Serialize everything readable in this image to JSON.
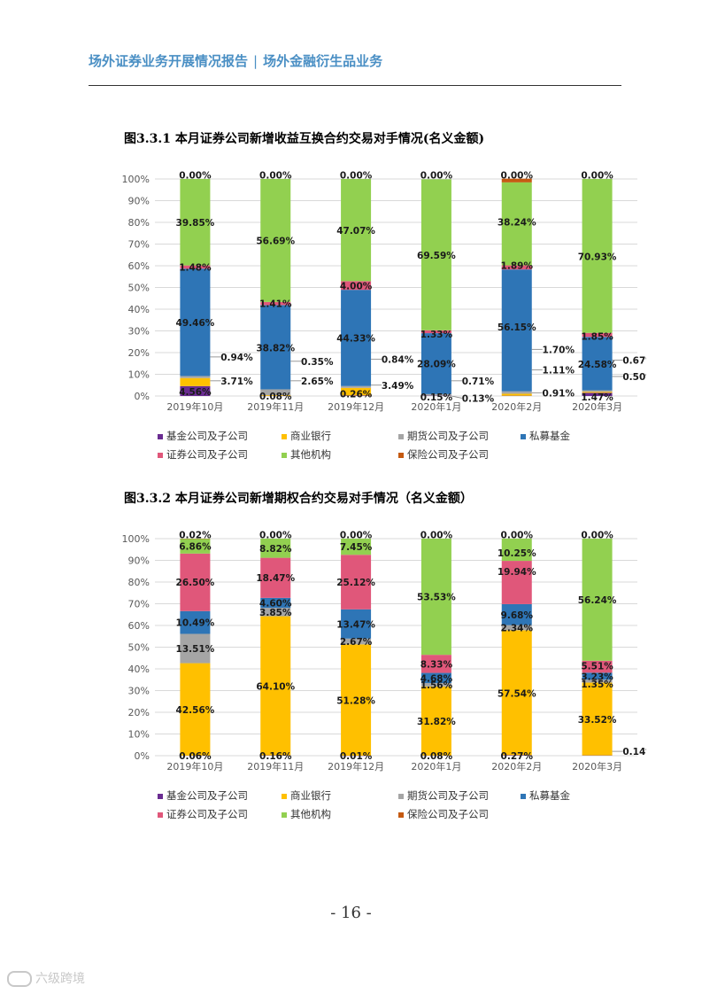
{
  "header": {
    "left": "场外证券业务开展情况报告",
    "separator": "|",
    "right": "场外金融衍生品业务"
  },
  "page_number": "- 16 -",
  "watermark": "六级跨境",
  "legend_labels": [
    "基金公司及子公司",
    "商业银行",
    "期货公司及子公司",
    "私募基金",
    "证券公司及子公司",
    "其他机构",
    "保险公司及子公司"
  ],
  "colors": {
    "基金公司及子公司": "#6a2c91",
    "商业银行": "#ffc000",
    "期货公司及子公司": "#a5a5a5",
    "私募基金": "#2e75b6",
    "证券公司及子公司": "#e0577a",
    "其他机构": "#92d050",
    "保险公司及子公司": "#c55a11"
  },
  "chart_data": [
    {
      "type": "bar",
      "stacked": true,
      "title": "图3.3.1 本月证券公司新增收益互换合约交易对手情况(名义金额)",
      "categories": [
        "2019年10月",
        "2019年11月",
        "2019年12月",
        "2020年1月",
        "2020年2月",
        "2020年3月"
      ],
      "ylim": [
        0,
        100
      ],
      "yticks": [
        "0%",
        "10%",
        "20%",
        "30%",
        "40%",
        "50%",
        "60%",
        "70%",
        "80%",
        "90%",
        "100%"
      ],
      "series": [
        {
          "name": "基金公司及子公司",
          "values": [
            4.56,
            0.08,
            0.26,
            0.15,
            0.13,
            1.47
          ]
        },
        {
          "name": "商业银行",
          "values": [
            3.71,
            0.35,
            3.49,
            0,
            0.91,
            0.5
          ]
        },
        {
          "name": "期货公司及子公司",
          "values": [
            0.94,
            2.65,
            0.84,
            0.71,
            1.11,
            0.67
          ]
        },
        {
          "name": "私募基金",
          "values": [
            49.46,
            38.82,
            44.33,
            28.09,
            56.15,
            24.58
          ]
        },
        {
          "name": "证券公司及子公司",
          "values": [
            1.48,
            1.41,
            4.0,
            1.33,
            1.89,
            1.85
          ]
        },
        {
          "name": "其他机构",
          "values": [
            39.85,
            56.69,
            47.07,
            69.59,
            38.24,
            70.93
          ]
        },
        {
          "name": "保险公司及子公司",
          "values": [
            0,
            0,
            0,
            0,
            1.7,
            0
          ]
        }
      ],
      "data_labels": [
        {
          "text": "4.56%",
          "cat": 0,
          "y": 2
        },
        {
          "text": "3.71%",
          "cat": 0,
          "y": 7,
          "outside": true
        },
        {
          "text": "0.94%",
          "cat": 0,
          "y": 18,
          "outside": true
        },
        {
          "text": "49.46%",
          "cat": 0,
          "y": 33.9
        },
        {
          "text": "1.48%",
          "cat": 0,
          "y": 59.4
        },
        {
          "text": "39.85%",
          "cat": 0,
          "y": 80
        },
        {
          "text": "0.00%",
          "cat": 0,
          "y": 101.8
        },
        {
          "text": "0.08%",
          "cat": 1,
          "y": 0
        },
        {
          "text": "2.65%",
          "cat": 1,
          "y": 7,
          "outside": true
        },
        {
          "text": "0.35%",
          "cat": 1,
          "y": 16,
          "outside": true
        },
        {
          "text": "38.82%",
          "cat": 1,
          "y": 22.3
        },
        {
          "text": "1.41%",
          "cat": 1,
          "y": 42.6
        },
        {
          "text": "56.69%",
          "cat": 1,
          "y": 71.6
        },
        {
          "text": "0.00%",
          "cat": 1,
          "y": 101.8
        },
        {
          "text": "0.26%",
          "cat": 2,
          "y": 1
        },
        {
          "text": "3.49%",
          "cat": 2,
          "y": 5,
          "outside": true
        },
        {
          "text": "0.84%",
          "cat": 2,
          "y": 17,
          "outside": true
        },
        {
          "text": "44.33%",
          "cat": 2,
          "y": 26.8
        },
        {
          "text": "4.00%",
          "cat": 2,
          "y": 50.9
        },
        {
          "text": "47.07%",
          "cat": 2,
          "y": 76.4
        },
        {
          "text": "0.00%",
          "cat": 2,
          "y": 101.8
        },
        {
          "text": "0.15%",
          "cat": 3,
          "y": -0.5
        },
        {
          "text": "0.13%",
          "cat": 3,
          "y": -1,
          "outside": true
        },
        {
          "text": "0.71%",
          "cat": 3,
          "y": 7,
          "outside": true
        },
        {
          "text": "28.09%",
          "cat": 3,
          "y": 14.8
        },
        {
          "text": "1.33%",
          "cat": 3,
          "y": 28.6
        },
        {
          "text": "69.59%",
          "cat": 3,
          "y": 64.8
        },
        {
          "text": "0.00%",
          "cat": 3,
          "y": 101.8
        },
        {
          "text": "0.91%",
          "cat": 4,
          "y": 1.5,
          "outside": true
        },
        {
          "text": "1.11%",
          "cat": 4,
          "y": 12,
          "outside": true
        },
        {
          "text": "1.70%",
          "cat": 4,
          "y": 21.5,
          "outside": true
        },
        {
          "text": "56.15%",
          "cat": 4,
          "y": 31.9
        },
        {
          "text": "1.89%",
          "cat": 4,
          "y": 60.2
        },
        {
          "text": "38.24%",
          "cat": 4,
          "y": 80.3
        },
        {
          "text": "0.00%",
          "cat": 4,
          "y": 101.8
        },
        {
          "text": "1.47%",
          "cat": 5,
          "y": -0.5
        },
        {
          "text": "0.50%",
          "cat": 5,
          "y": 9,
          "outside": true
        },
        {
          "text": "0.67%",
          "cat": 5,
          "y": 16.5,
          "outside": true
        },
        {
          "text": "24.58%",
          "cat": 5,
          "y": 14.6
        },
        {
          "text": "1.85%",
          "cat": 5,
          "y": 27.5
        },
        {
          "text": "70.93%",
          "cat": 5,
          "y": 64.2
        },
        {
          "text": "0.00%",
          "cat": 5,
          "y": 101.8
        }
      ]
    },
    {
      "type": "bar",
      "stacked": true,
      "title": "图3.3.2 本月证券公司新增期权合约交易对手情况（名义金额）",
      "categories": [
        "2019年10月",
        "2019年11月",
        "2019年12月",
        "2020年1月",
        "2020年2月",
        "2020年3月"
      ],
      "ylim": [
        0,
        100
      ],
      "yticks": [
        "0%",
        "10%",
        "20%",
        "30%",
        "40%",
        "50%",
        "60%",
        "70%",
        "80%",
        "90%",
        "100%"
      ],
      "series": [
        {
          "name": "基金公司及子公司",
          "values": [
            0.06,
            0.16,
            0.01,
            0.08,
            0.27,
            0.14
          ]
        },
        {
          "name": "商业银行",
          "values": [
            42.56,
            64.1,
            51.28,
            31.82,
            57.54,
            33.52
          ]
        },
        {
          "name": "期货公司及子公司",
          "values": [
            13.51,
            3.85,
            2.67,
            1.56,
            2.34,
            1.35
          ]
        },
        {
          "name": "私募基金",
          "values": [
            10.49,
            4.6,
            13.47,
            4.68,
            9.68,
            3.23
          ]
        },
        {
          "name": "证券公司及子公司",
          "values": [
            26.5,
            18.47,
            25.12,
            8.33,
            19.94,
            5.51
          ]
        },
        {
          "name": "其他机构",
          "values": [
            6.86,
            8.82,
            7.45,
            53.53,
            10.25,
            56.24
          ]
        },
        {
          "name": "保险公司及子公司",
          "values": [
            0.02,
            0,
            0,
            0,
            0,
            0
          ]
        }
      ],
      "data_labels": [
        {
          "text": "0.06%",
          "cat": 0,
          "y": 0
        },
        {
          "text": "42.56%",
          "cat": 0,
          "y": 21.3
        },
        {
          "text": "13.51%",
          "cat": 0,
          "y": 49.4
        },
        {
          "text": "10.49%",
          "cat": 0,
          "y": 61.4
        },
        {
          "text": "26.50%",
          "cat": 0,
          "y": 79.9
        },
        {
          "text": "6.86%",
          "cat": 0,
          "y": 96.6
        },
        {
          "text": "0.02%",
          "cat": 0,
          "y": 101.8
        },
        {
          "text": "0.16%",
          "cat": 1,
          "y": 0
        },
        {
          "text": "64.10%",
          "cat": 1,
          "y": 32.1
        },
        {
          "text": "3.85%",
          "cat": 1,
          "y": 66.2
        },
        {
          "text": "4.60%",
          "cat": 1,
          "y": 70.5
        },
        {
          "text": "18.47%",
          "cat": 1,
          "y": 82.1
        },
        {
          "text": "8.82%",
          "cat": 1,
          "y": 95.6
        },
        {
          "text": "0.00%",
          "cat": 1,
          "y": 101.8
        },
        {
          "text": "0.01%",
          "cat": 2,
          "y": 0
        },
        {
          "text": "51.28%",
          "cat": 2,
          "y": 25.6
        },
        {
          "text": "2.67%",
          "cat": 2,
          "y": 52.6
        },
        {
          "text": "13.47%",
          "cat": 2,
          "y": 60.7
        },
        {
          "text": "25.12%",
          "cat": 2,
          "y": 80.1
        },
        {
          "text": "7.45%",
          "cat": 2,
          "y": 96.3
        },
        {
          "text": "0.00%",
          "cat": 2,
          "y": 101.8
        },
        {
          "text": "0.08%",
          "cat": 3,
          "y": 0
        },
        {
          "text": "31.82%",
          "cat": 3,
          "y": 15.9
        },
        {
          "text": "1.56%",
          "cat": 3,
          "y": 32.7
        },
        {
          "text": "4.68%",
          "cat": 3,
          "y": 35.8
        },
        {
          "text": "8.33%",
          "cat": 3,
          "y": 42.3
        },
        {
          "text": "53.53%",
          "cat": 3,
          "y": 73.2
        },
        {
          "text": "0.00%",
          "cat": 3,
          "y": 101.8
        },
        {
          "text": "0.27%",
          "cat": 4,
          "y": 0
        },
        {
          "text": "57.54%",
          "cat": 4,
          "y": 28.8
        },
        {
          "text": "2.34%",
          "cat": 4,
          "y": 58.9
        },
        {
          "text": "9.68%",
          "cat": 4,
          "y": 65
        },
        {
          "text": "19.94%",
          "cat": 4,
          "y": 84.8
        },
        {
          "text": "10.25%",
          "cat": 4,
          "y": 93.5
        },
        {
          "text": "0.00%",
          "cat": 4,
          "y": 101.8
        },
        {
          "text": "0.14%",
          "cat": 5,
          "y": 2,
          "outside": true
        },
        {
          "text": "33.52%",
          "cat": 5,
          "y": 16.8
        },
        {
          "text": "1.35%",
          "cat": 5,
          "y": 33
        },
        {
          "text": "3.23%",
          "cat": 5,
          "y": 36.5
        },
        {
          "text": "5.51%",
          "cat": 5,
          "y": 41.5
        },
        {
          "text": "56.24%",
          "cat": 5,
          "y": 71.9
        },
        {
          "text": "0.00%",
          "cat": 5,
          "y": 101.8
        }
      ]
    }
  ]
}
